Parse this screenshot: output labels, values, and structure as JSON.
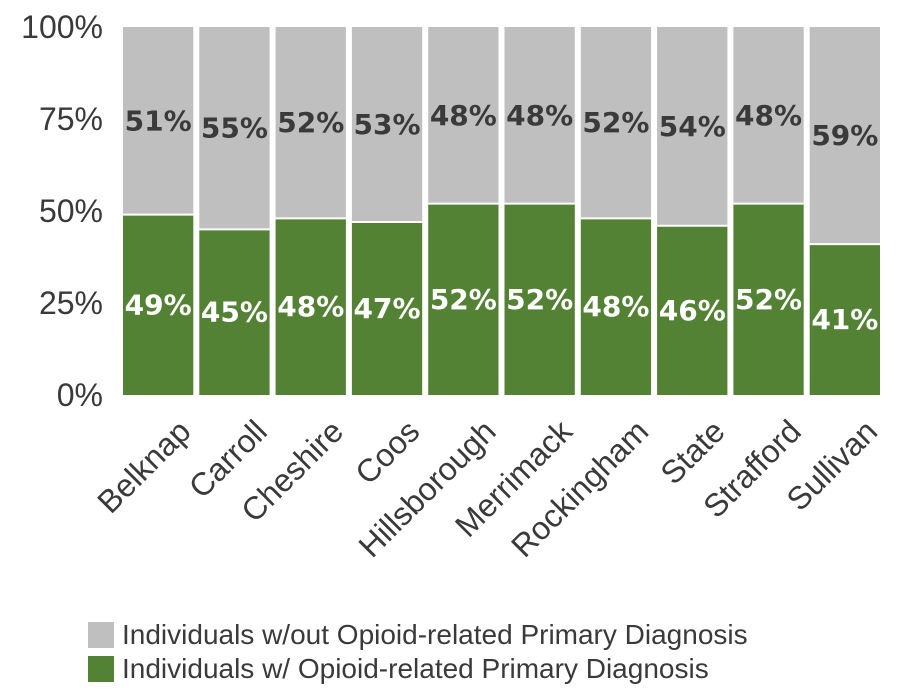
{
  "chart_data": {
    "type": "bar",
    "stacked": true,
    "categories": [
      "Belknap",
      "Carroll",
      "Cheshire",
      "Coos",
      "Hillsborough",
      "Merrimack",
      "Rockingham",
      "State",
      "Strafford",
      "Sullivan"
    ],
    "series": [
      {
        "name": "Individuals w/ Opioid-related Primary Diagnosis",
        "values": [
          49,
          45,
          48,
          47,
          52,
          52,
          48,
          46,
          52,
          41
        ],
        "labels": [
          "49%",
          "45%",
          "48%",
          "47%",
          "52%",
          "52%",
          "48%",
          "46%",
          "52%",
          "41%"
        ],
        "color": "#548235",
        "label_color": "#ffffff"
      },
      {
        "name": "Individuals w/out Opioid-related Primary Diagnosis",
        "values": [
          51,
          55,
          52,
          53,
          48,
          48,
          52,
          54,
          48,
          59
        ],
        "labels": [
          "51%",
          "55%",
          "52%",
          "53%",
          "48%",
          "48%",
          "52%",
          "54%",
          "48%",
          "59%"
        ],
        "color": "#bfbfbf",
        "label_color": "#3a3a3a"
      }
    ],
    "yticks": [
      "0%",
      "25%",
      "50%",
      "75%",
      "100%"
    ],
    "ylim": [
      0,
      100
    ],
    "grid": false,
    "legend_position": "bottom"
  }
}
